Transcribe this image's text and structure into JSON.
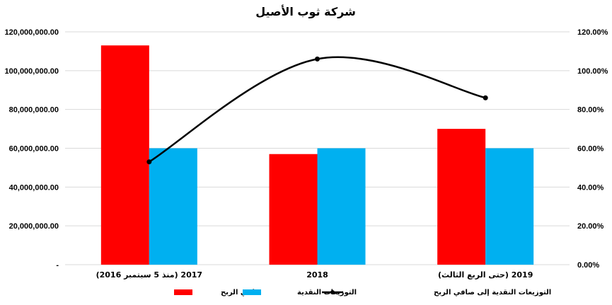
{
  "chart_data": {
    "type": "bar",
    "title": "شركة ثوب الأصيل",
    "categories": [
      "2017 (منذ 5 سبتمبر 2016)",
      "2018",
      "2019 (حتى الربع الثالث)"
    ],
    "series": [
      {
        "name": "صافي الربح",
        "type": "bar",
        "axis": "left",
        "color": "#ff0000",
        "values": [
          113000000,
          57000000,
          70000000
        ]
      },
      {
        "name": "التوزيعات النقدية",
        "type": "bar",
        "axis": "left",
        "color": "#00b0f0",
        "values": [
          60000000,
          60000000,
          60000000
        ]
      },
      {
        "name": "التوزيعات النقدية إلى صافي الربح",
        "type": "line",
        "axis": "right",
        "color": "#000000",
        "values": [
          0.53,
          1.06,
          0.86
        ]
      }
    ],
    "y_left": {
      "min": 0,
      "max": 120000000,
      "ticks": [
        "-",
        "20,000,000.00",
        "40,000,000.00",
        "60,000,000.00",
        "80,000,000.00",
        "100,000,000.00",
        "120,000,000.00"
      ]
    },
    "y_right": {
      "min": 0,
      "max": 1.2,
      "ticks": [
        "0.00%",
        "20.00%",
        "40.00%",
        "60.00%",
        "80.00%",
        "100.00%",
        "120.00%"
      ]
    },
    "grid": true,
    "legend_position": "bottom"
  }
}
